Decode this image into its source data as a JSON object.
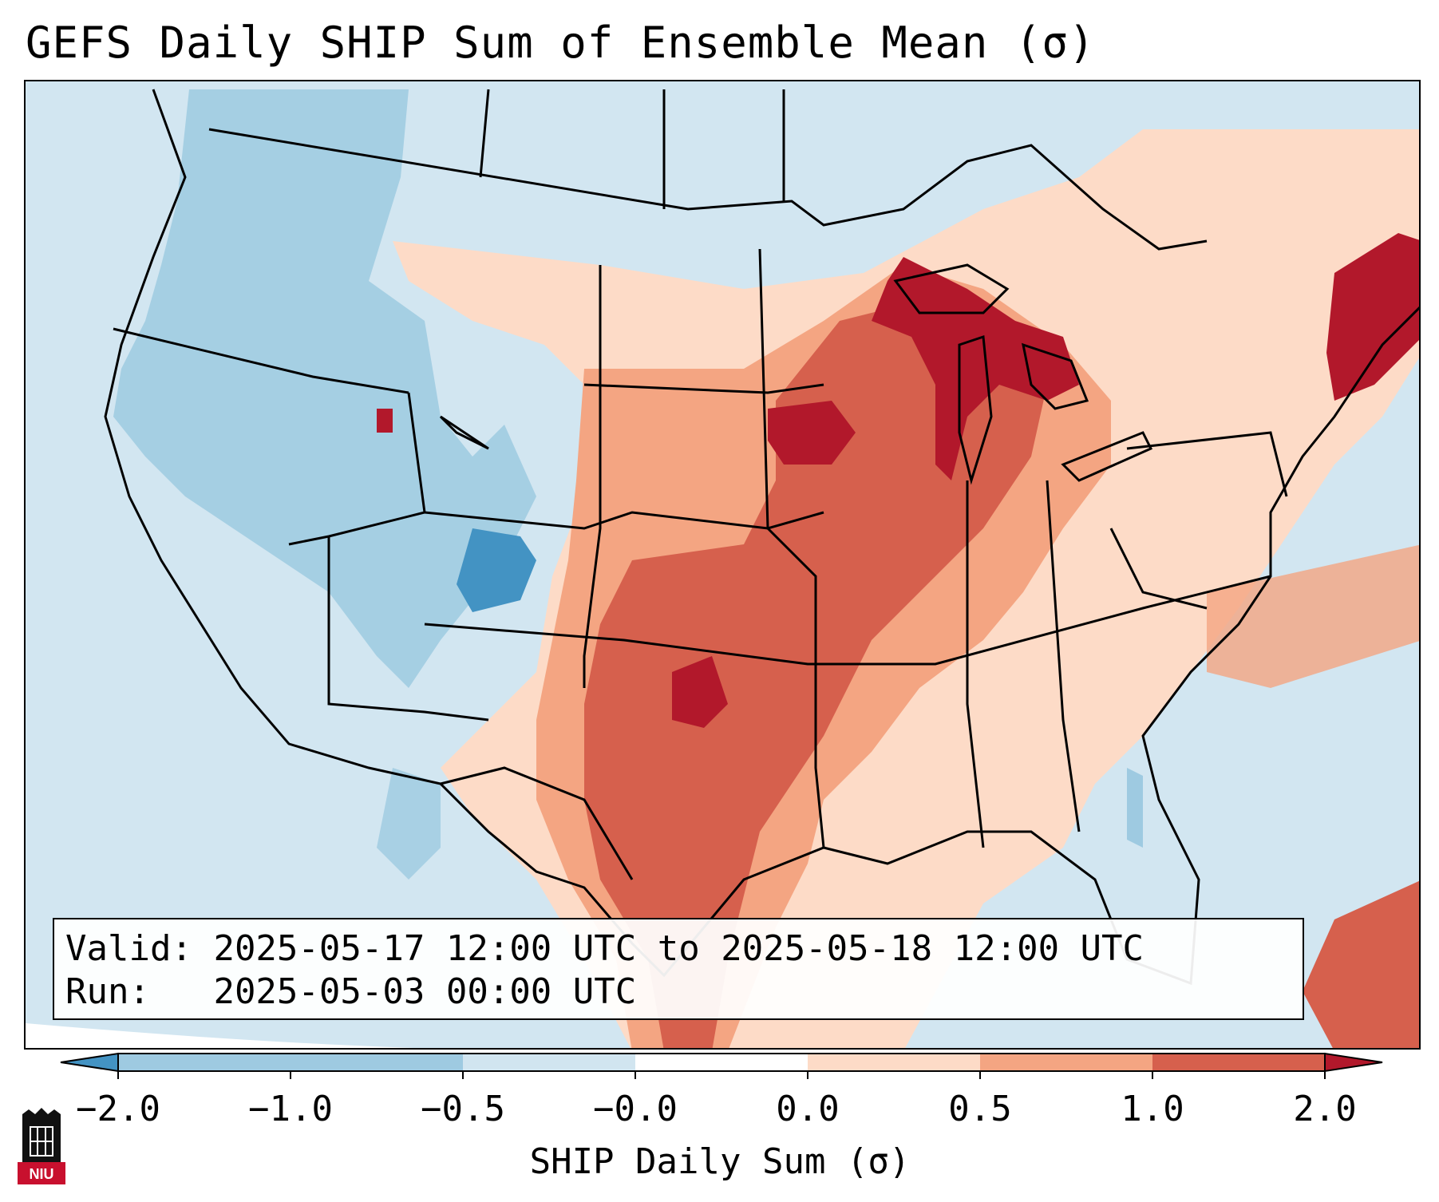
{
  "title": "GEFS Daily SHIP Sum of Ensemble Mean (σ)",
  "info": {
    "valid_label": "Valid:",
    "valid_value": "2025-05-17 12:00 UTC to 2025-05-18 12:00 UTC",
    "run_label": "Run:",
    "run_value": "2025-05-03 00:00 UTC"
  },
  "colorbar": {
    "label": "SHIP Daily Sum (σ)",
    "ticks": [
      "−2.0",
      "−1.0",
      "−0.5",
      "−0.0",
      "0.0",
      "0.5",
      "1.0",
      "2.0"
    ],
    "bins": [
      {
        "from": "-2.0",
        "to": "-1.0",
        "color": "#9ecae1"
      },
      {
        "from": "-1.0",
        "to": "-0.5",
        "color": "#9ecae1"
      },
      {
        "from": "-0.5",
        "to": "-0.0",
        "color": "#d1e5f0"
      },
      {
        "from": "-0.0",
        "to": "0.0",
        "color": "#ffffff"
      },
      {
        "from": "0.0",
        "to": "0.5",
        "color": "#fddbc7"
      },
      {
        "from": "0.5",
        "to": "1.0",
        "color": "#f4a582"
      },
      {
        "from": "1.0",
        "to": "2.0",
        "color": "#d6604d"
      }
    ],
    "under_color": "#4393c3",
    "over_color": "#b2182b",
    "extend": "both"
  },
  "map": {
    "region": "Contiguous United States",
    "colors": {
      "ocean_base": "#d2e6f1",
      "neg_strong": "#4393c3",
      "neg_med": "#9ecae1",
      "neg_weak": "#d1e5f0",
      "pos_weak": "#fddbc7",
      "pos_med": "#f4a582",
      "pos_strong": "#d6604d",
      "pos_max": "#b2182b"
    }
  },
  "logo": {
    "text": "NIU"
  }
}
